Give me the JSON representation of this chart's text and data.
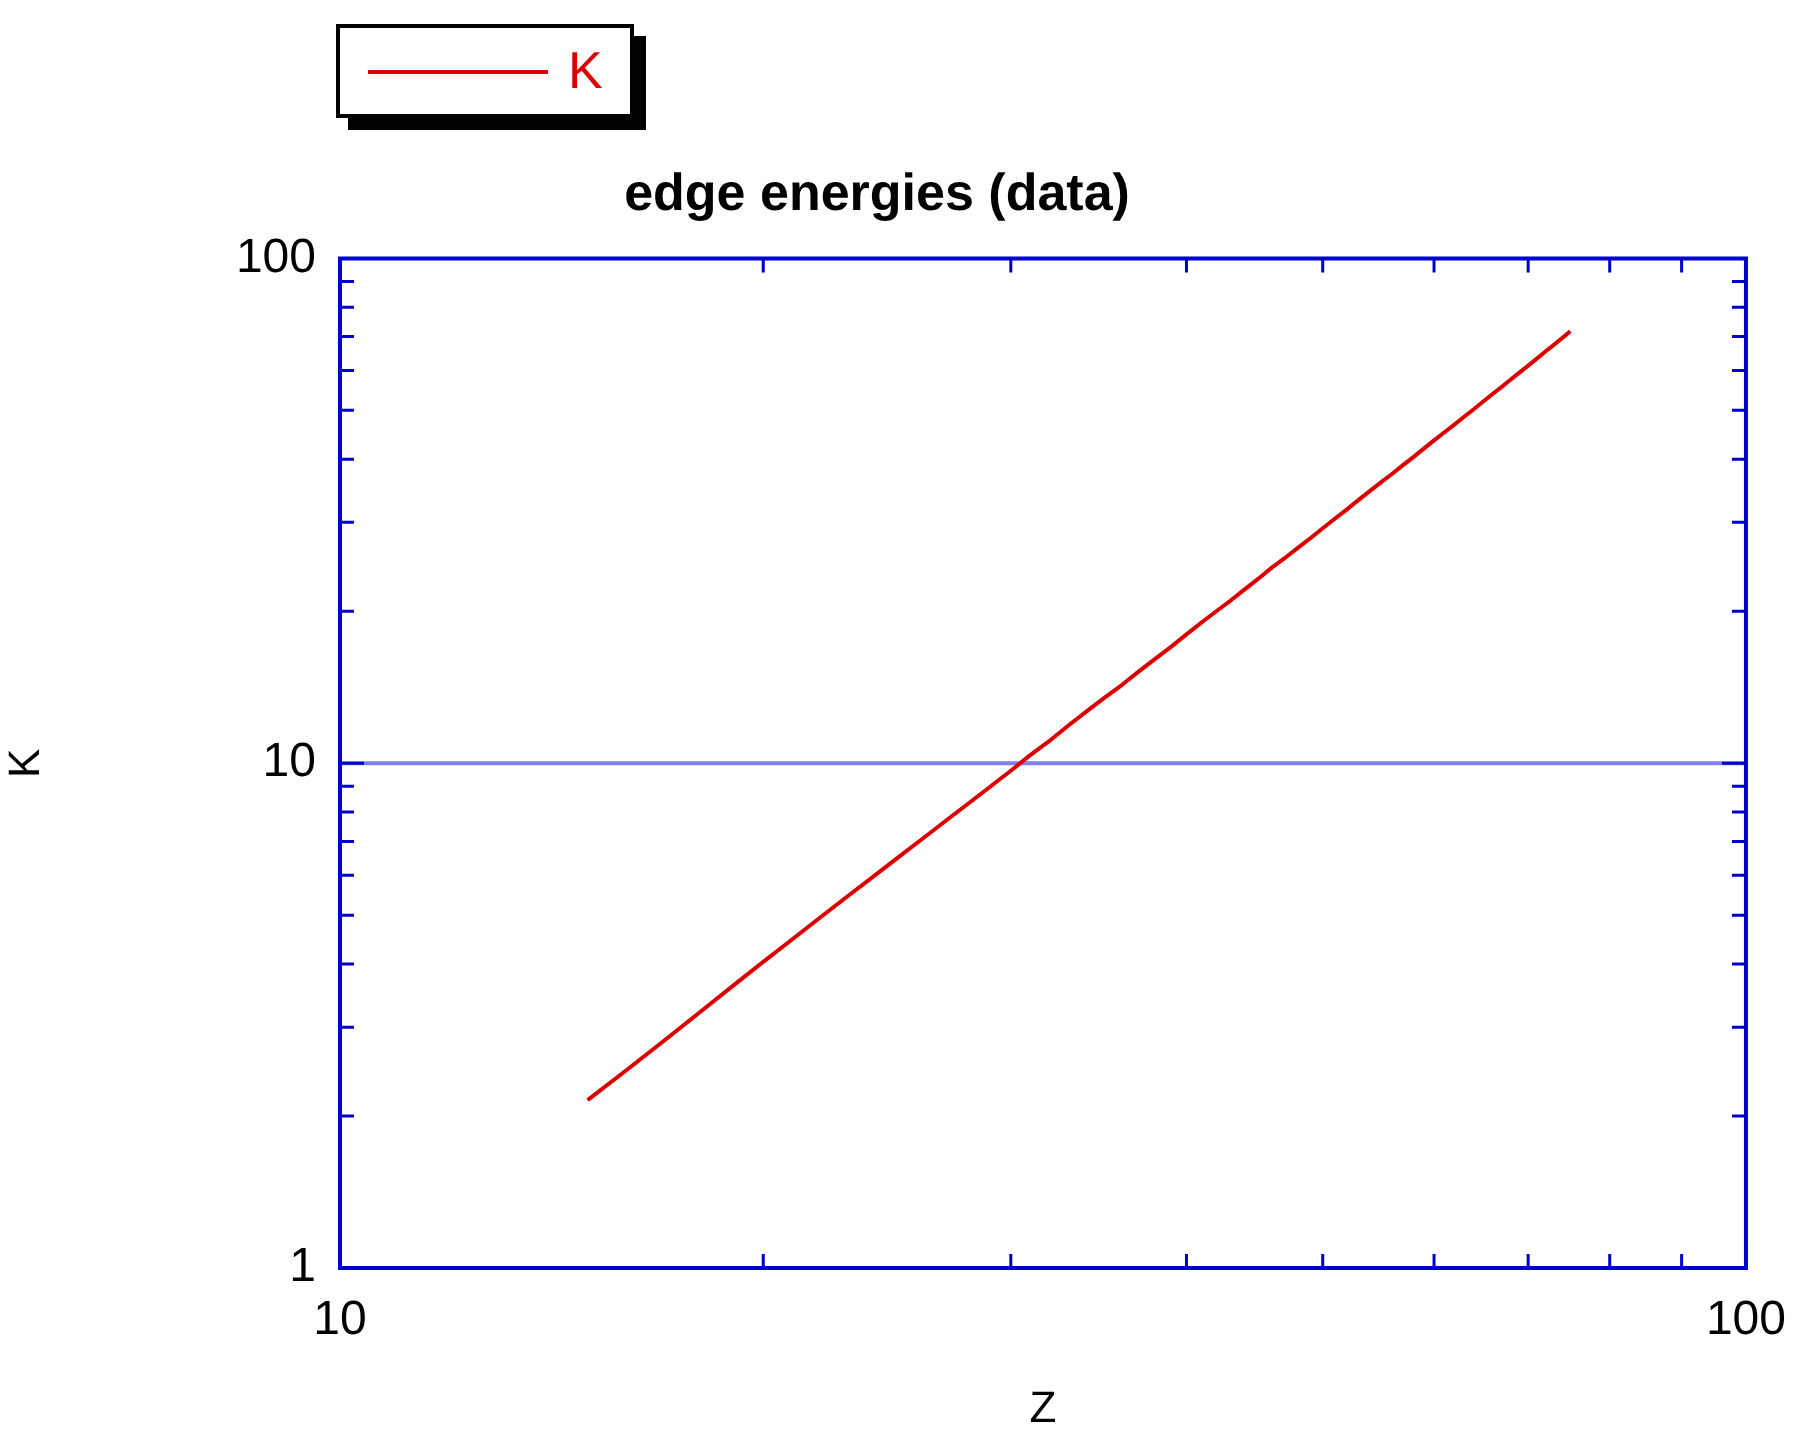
{
  "chart_data": {
    "type": "line",
    "title": "edge energies (data)",
    "xlabel": "Z",
    "ylabel": "K",
    "log": "xy",
    "legend": "top left",
    "xlim": [
      10,
      100
    ],
    "ylim": [
      1,
      100
    ],
    "xticks": [
      10,
      {
        "value": 20,
        "label": null
      },
      {
        "value": 30,
        "label": null
      },
      {
        "value": 40,
        "label": null
      },
      {
        "value": 50,
        "label": null
      },
      {
        "value": 60,
        "label": null
      },
      {
        "value": 70,
        "label": null
      },
      {
        "value": 80,
        "label": null
      },
      {
        "value": 90,
        "label": null
      },
      100
    ],
    "yticks": [
      1,
      {
        "value": 2,
        "label": null
      },
      {
        "value": 3,
        "label": null
      },
      {
        "value": 4,
        "label": null
      },
      {
        "value": 5,
        "label": null
      },
      {
        "value": 6,
        "label": null
      },
      {
        "value": 7,
        "label": null
      },
      {
        "value": 8,
        "label": null
      },
      {
        "value": 9,
        "label": null
      },
      10,
      {
        "value": 20,
        "label": null
      },
      {
        "value": 30,
        "label": null
      },
      {
        "value": 40,
        "label": null
      },
      {
        "value": 50,
        "label": null
      },
      {
        "value": 60,
        "label": null
      },
      {
        "value": 70,
        "label": null
      },
      {
        "value": 80,
        "label": null
      },
      {
        "value": 90,
        "label": null
      },
      100
    ],
    "ref_lines": [
      {
        "axis": "y",
        "value": 10,
        "color": "#8080e8"
      }
    ],
    "x": [
      15,
      16,
      17,
      18,
      19,
      20,
      21,
      22,
      23,
      24,
      25,
      26,
      27,
      28,
      29,
      30,
      31,
      32,
      33,
      34,
      35,
      36,
      37,
      38,
      39,
      40,
      41,
      42,
      43,
      44,
      45,
      46,
      47,
      48,
      49,
      50,
      51,
      52,
      53,
      54,
      55,
      56,
      57,
      58,
      59,
      60,
      61,
      62,
      63,
      64,
      65,
      66,
      67,
      68,
      69,
      70,
      71,
      72,
      73,
      74,
      75
    ],
    "series": [
      {
        "name": "K",
        "color": "#dd0000",
        "values": [
          2.15,
          2.47,
          2.82,
          3.2,
          3.61,
          4.04,
          4.49,
          4.97,
          5.47,
          5.99,
          6.54,
          7.11,
          7.71,
          8.33,
          8.98,
          9.66,
          10.4,
          11.1,
          11.9,
          12.7,
          13.5,
          14.3,
          15.2,
          16.1,
          17.0,
          18.0,
          19.0,
          20.0,
          21.0,
          22.1,
          23.2,
          24.4,
          25.5,
          26.7,
          27.9,
          29.2,
          30.5,
          31.8,
          33.2,
          34.6,
          36.0,
          37.4,
          38.9,
          40.4,
          42.0,
          43.6,
          45.2,
          46.8,
          48.5,
          50.2,
          52.0,
          53.8,
          55.6,
          57.5,
          59.4,
          61.3,
          63.3,
          65.4,
          67.4,
          69.5,
          71.7
        ]
      }
    ]
  }
}
